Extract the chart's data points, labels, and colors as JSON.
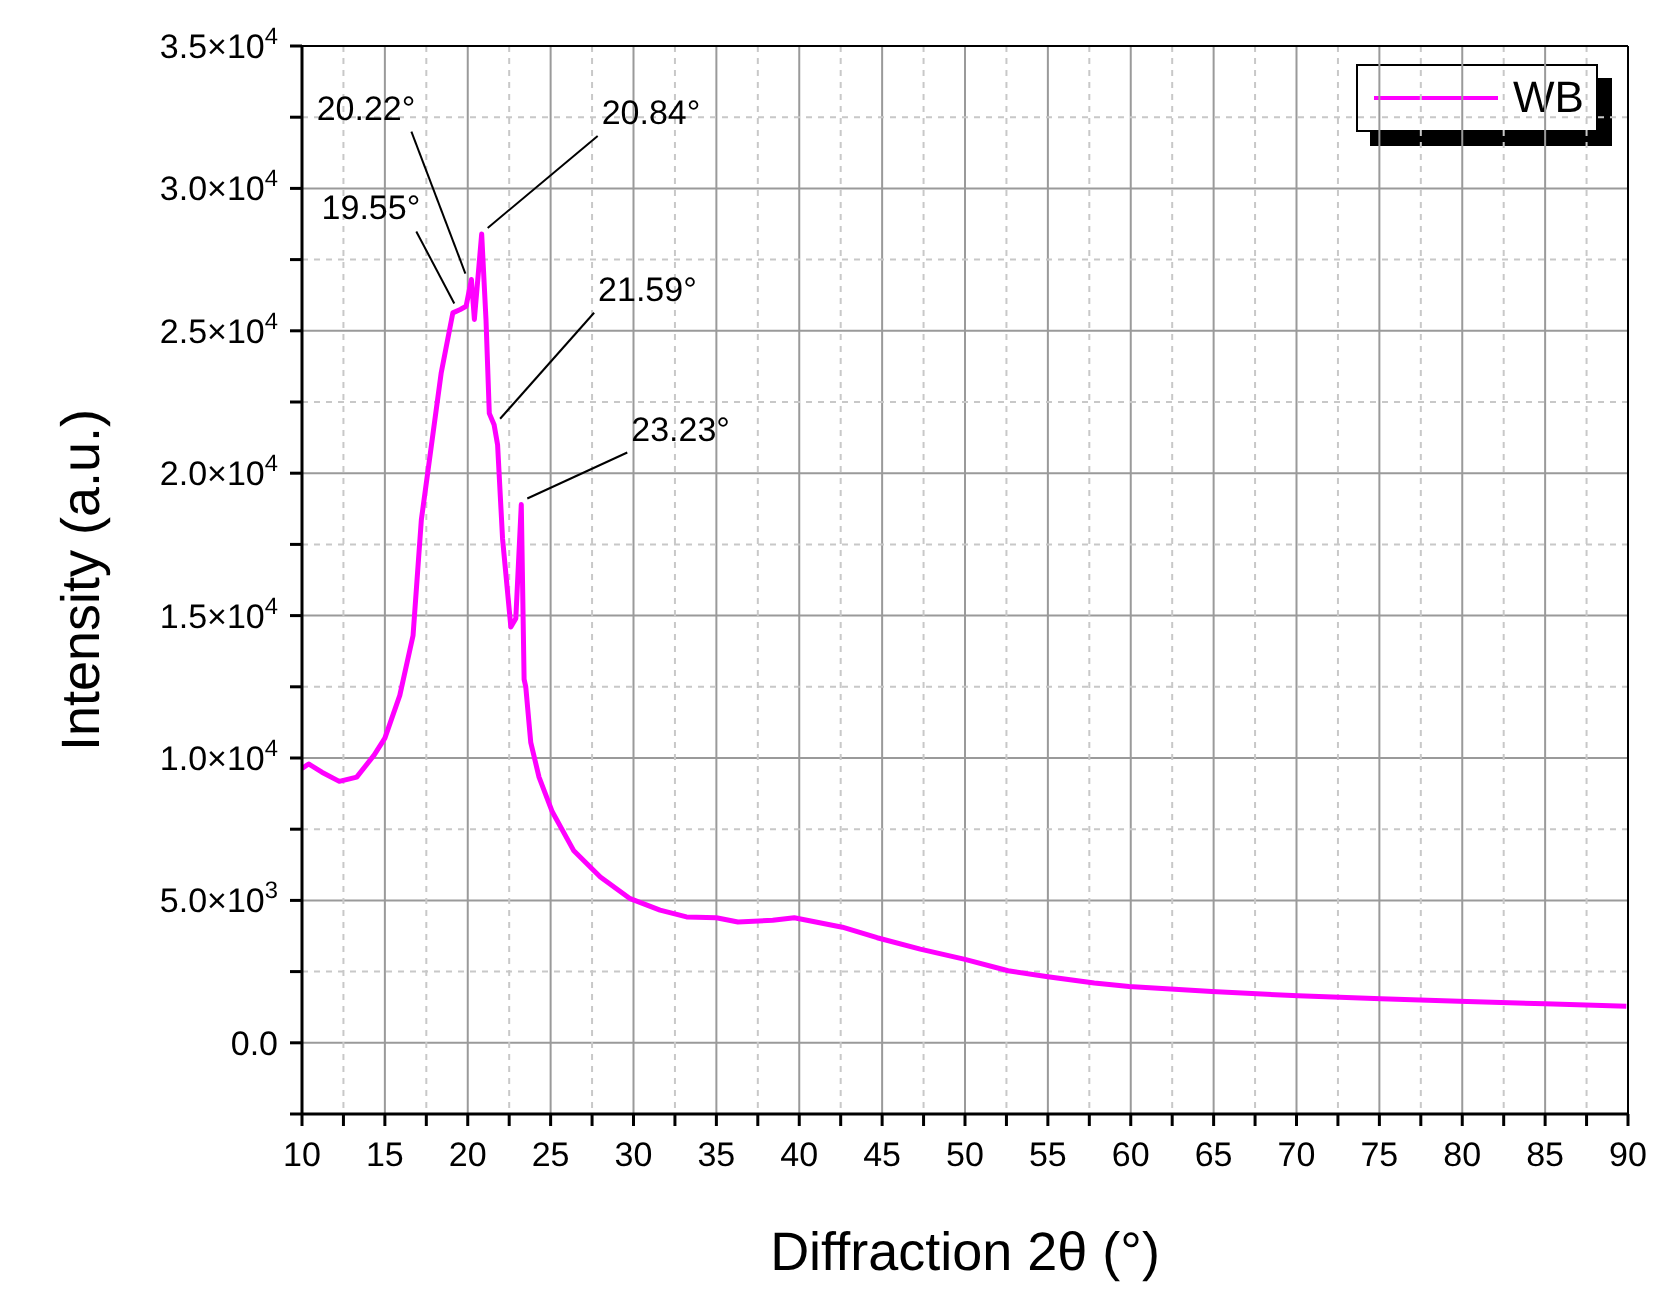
{
  "chart_data": {
    "type": "line",
    "xlabel": "Diffraction 2θ (°)",
    "ylabel": "Intensity (a.u.)",
    "xlim": [
      10,
      90
    ],
    "xticks": [
      10,
      {
        "value": 12.5,
        "label": null
      },
      15,
      {
        "value": 17.5,
        "label": null
      },
      20,
      {
        "value": 22.5,
        "label": null
      },
      25,
      {
        "value": 27.5,
        "label": null
      },
      30,
      {
        "value": 32.5,
        "label": null
      },
      35,
      {
        "value": 37.5,
        "label": null
      },
      40,
      {
        "value": 42.5,
        "label": null
      },
      45,
      {
        "value": 47.5,
        "label": null
      },
      50,
      {
        "value": 52.5,
        "label": null
      },
      55,
      {
        "value": 57.5,
        "label": null
      },
      60,
      {
        "value": 62.5,
        "label": null
      },
      65,
      {
        "value": 67.5,
        "label": null
      },
      70,
      {
        "value": 72.5,
        "label": null
      },
      75,
      {
        "value": 77.5,
        "label": null
      },
      80,
      {
        "value": 82.5,
        "label": null
      },
      85,
      {
        "value": 87.5,
        "label": null
      },
      90
    ],
    "ylim": [
      -2500,
      35000
    ],
    "yticks": [
      {
        "value": -2500,
        "label": null
      },
      {
        "value": 0,
        "label": "0.0"
      },
      {
        "value": 2500,
        "label": null
      },
      {
        "value": 5000,
        "label": "5.0×10$^{3}$"
      },
      {
        "value": 7500,
        "label": null
      },
      {
        "value": 10000,
        "label": "1.0×10$^{4}$"
      },
      {
        "value": 12500,
        "label": null
      },
      {
        "value": 15000,
        "label": "1.5×10$^{4}$"
      },
      {
        "value": 17500,
        "label": null
      },
      {
        "value": 20000,
        "label": "2.0×10$^{4}$"
      },
      {
        "value": 22500,
        "label": null
      },
      {
        "value": 25000,
        "label": "2.5×10$^{4}$"
      },
      {
        "value": 27500,
        "label": null
      },
      {
        "value": 30000,
        "label": "3.0×10$^{4}$"
      },
      {
        "value": 32500,
        "label": null
      },
      {
        "value": 35000,
        "label": "3.5×10$^{4}$"
      }
    ],
    "grid": true,
    "legend": "top right",
    "series": [
      {
        "name": "WB",
        "color": "#ff00ff",
        "x": [
          10,
          10.4,
          11.2,
          12.25,
          13.3,
          14.35,
          15,
          15.9,
          16.7,
          17.2,
          18.4,
          19.1,
          19.55,
          19.9,
          20.22,
          20.4,
          20.84,
          21.1,
          21.3,
          21.59,
          21.8,
          22.1,
          22.6,
          22.9,
          23.23,
          23.4,
          23.5,
          23.8,
          24.3,
          25.1,
          26.4,
          28,
          29.8,
          31.6,
          33.2,
          35,
          36.3,
          38.4,
          39.7,
          41,
          42.6,
          44.7,
          47.3,
          50,
          52.6,
          55,
          57.8,
          59.9,
          64.9,
          70.1,
          75.1,
          79.8,
          85,
          89.9
        ],
        "values": [
          9630,
          9790,
          9500,
          9180,
          9330,
          10100,
          10700,
          12200,
          14300,
          18360,
          23530,
          25630,
          25750,
          25860,
          26800,
          25400,
          28400,
          25400,
          22100,
          21700,
          21000,
          17700,
          14600,
          14900,
          18900,
          12760,
          12500,
          10550,
          9330,
          8110,
          6740,
          5820,
          5060,
          4660,
          4420,
          4390,
          4240,
          4300,
          4390,
          4240,
          4060,
          3690,
          3290,
          2930,
          2530,
          2320,
          2100,
          1980,
          1800,
          1650,
          1550,
          1460,
          1370,
          1280
        ]
      }
    ],
    "annotations": [
      {
        "text": "19.55°",
        "x": 19.55,
        "y": 25750
      },
      {
        "text": "20.22°",
        "x": 20.22,
        "y": 26800
      },
      {
        "text": "20.84°",
        "x": 20.84,
        "y": 28400
      },
      {
        "text": "21.59°",
        "x": 21.59,
        "y": 21700
      },
      {
        "text": "23.23°",
        "x": 23.23,
        "y": 18900
      }
    ]
  }
}
